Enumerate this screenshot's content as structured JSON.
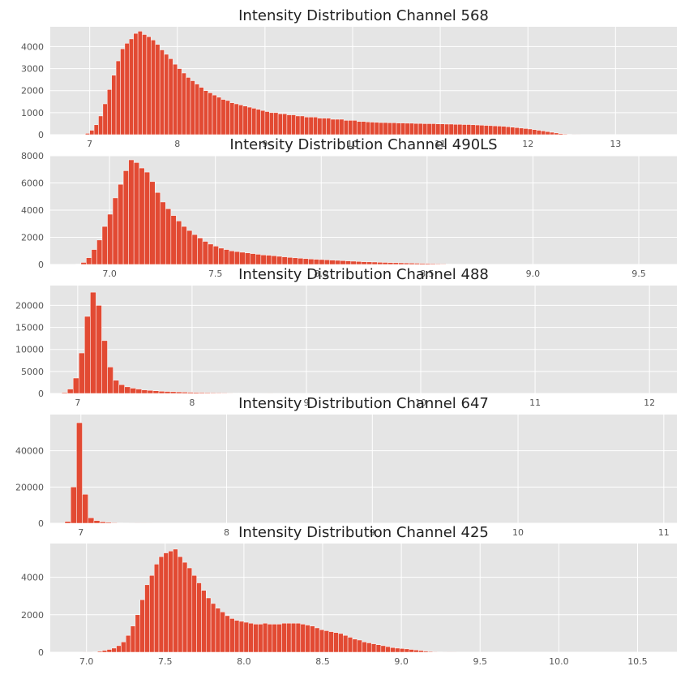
{
  "chart_data": [
    {
      "type": "bar",
      "title": "Intensity Distribution Channel 568",
      "xlabel": "",
      "ylabel": "",
      "grid": true,
      "xlim": [
        6.55,
        13.7
      ],
      "ylim": [
        0,
        4900
      ],
      "xticks": [
        7,
        8,
        9,
        10,
        11,
        12,
        13
      ],
      "yticks": [
        0,
        1000,
        2000,
        3000,
        4000
      ],
      "bin_start": 6.9,
      "bin_width": 0.05,
      "color": "#e24a33",
      "values": [
        10,
        60,
        200,
        450,
        850,
        1400,
        2050,
        2700,
        3350,
        3900,
        4150,
        4350,
        4600,
        4700,
        4550,
        4450,
        4300,
        4100,
        3850,
        3650,
        3450,
        3200,
        3000,
        2800,
        2600,
        2450,
        2300,
        2150,
        2000,
        1900,
        1800,
        1700,
        1600,
        1550,
        1450,
        1400,
        1350,
        1300,
        1250,
        1200,
        1150,
        1100,
        1050,
        1000,
        1000,
        950,
        950,
        900,
        900,
        850,
        850,
        800,
        800,
        800,
        750,
        750,
        750,
        700,
        700,
        700,
        650,
        650,
        650,
        600,
        600,
        580,
        570,
        560,
        550,
        550,
        540,
        540,
        530,
        530,
        520,
        520,
        510,
        510,
        500,
        500,
        500,
        490,
        490,
        480,
        480,
        470,
        470,
        460,
        460,
        450,
        440,
        430,
        420,
        410,
        400,
        390,
        380,
        360,
        340,
        320,
        300,
        280,
        260,
        230,
        200,
        170,
        140,
        110,
        80,
        50,
        30,
        15,
        5,
        2
      ]
    },
    {
      "type": "bar",
      "title": "Intensity Distribution Channel 490LS",
      "xlabel": "",
      "ylabel": "",
      "grid": true,
      "xlim": [
        6.72,
        9.68
      ],
      "ylim": [
        0,
        8000
      ],
      "xticks": [
        7.0,
        7.5,
        8.0,
        8.5,
        9.0,
        9.5
      ],
      "yticks": [
        0,
        2000,
        4000,
        6000,
        8000
      ],
      "bin_start": 6.84,
      "bin_width": 0.025,
      "color": "#e24a33",
      "values": [
        30,
        150,
        500,
        1100,
        1800,
        2800,
        3700,
        4900,
        5900,
        6900,
        7700,
        7500,
        7100,
        6800,
        6100,
        5300,
        4600,
        4100,
        3600,
        3200,
        2800,
        2500,
        2200,
        1950,
        1700,
        1500,
        1350,
        1200,
        1100,
        1000,
        950,
        900,
        850,
        800,
        750,
        700,
        680,
        640,
        600,
        560,
        520,
        490,
        460,
        430,
        400,
        380,
        360,
        340,
        320,
        300,
        280,
        260,
        240,
        220,
        200,
        190,
        180,
        160,
        150,
        140,
        130,
        120,
        110,
        100,
        90,
        80,
        70,
        60,
        50,
        40,
        30,
        25,
        20,
        15
      ]
    },
    {
      "type": "bar",
      "title": "Intensity Distribution Channel 488",
      "xlabel": "",
      "ylabel": "",
      "grid": true,
      "xlim": [
        6.76,
        12.24
      ],
      "ylim": [
        0,
        24500
      ],
      "xticks": [
        7,
        8,
        9,
        10,
        11,
        12
      ],
      "yticks": [
        0,
        5000,
        10000,
        15000,
        20000
      ],
      "bin_start": 6.86,
      "bin_width": 0.05,
      "color": "#e24a33",
      "values": [
        200,
        1000,
        3500,
        9200,
        17500,
        23000,
        20000,
        12000,
        6000,
        3000,
        2000,
        1500,
        1200,
        1000,
        800,
        700,
        600,
        500,
        450,
        400,
        350,
        300,
        260,
        230,
        200,
        180,
        160,
        140,
        120,
        100,
        90,
        80,
        70,
        60,
        50,
        40,
        30
      ]
    },
    {
      "type": "bar",
      "title": "Intensity Distribution Channel 647",
      "xlabel": "",
      "ylabel": "",
      "grid": true,
      "xlim": [
        6.79,
        11.09
      ],
      "ylim": [
        0,
        60000
      ],
      "xticks": [
        7,
        8,
        9,
        10,
        11
      ],
      "yticks": [
        0,
        20000,
        40000
      ],
      "bin_start": 6.89,
      "bin_width": 0.04,
      "color": "#e24a33",
      "values": [
        1000,
        20000,
        55500,
        16000,
        3000,
        1500,
        800,
        500,
        300,
        200,
        150,
        100,
        60,
        40,
        20
      ]
    },
    {
      "type": "bar",
      "title": "Intensity Distribution Channel 425",
      "xlabel": "",
      "ylabel": "",
      "grid": true,
      "xlim": [
        6.77,
        10.75
      ],
      "ylim": [
        0,
        5800
      ],
      "xticks": [
        7.0,
        7.5,
        8.0,
        8.5,
        9.0,
        9.5,
        10.0,
        10.5
      ],
      "yticks": [
        0,
        2000,
        4000
      ],
      "bin_start": 6.98,
      "bin_width": 0.03,
      "color": "#e24a33",
      "values": [
        5,
        10,
        20,
        50,
        100,
        150,
        220,
        350,
        550,
        900,
        1400,
        2000,
        2800,
        3600,
        4100,
        4700,
        5100,
        5300,
        5400,
        5500,
        5100,
        4800,
        4500,
        4100,
        3700,
        3300,
        2900,
        2600,
        2350,
        2150,
        1950,
        1800,
        1700,
        1650,
        1600,
        1550,
        1500,
        1500,
        1550,
        1500,
        1500,
        1500,
        1550,
        1550,
        1550,
        1550,
        1500,
        1450,
        1400,
        1300,
        1200,
        1150,
        1100,
        1050,
        1000,
        900,
        800,
        700,
        650,
        550,
        500,
        450,
        400,
        350,
        300,
        250,
        220,
        200,
        180,
        150,
        120,
        90,
        60,
        40,
        25,
        15,
        10,
        5,
        3
      ]
    }
  ]
}
